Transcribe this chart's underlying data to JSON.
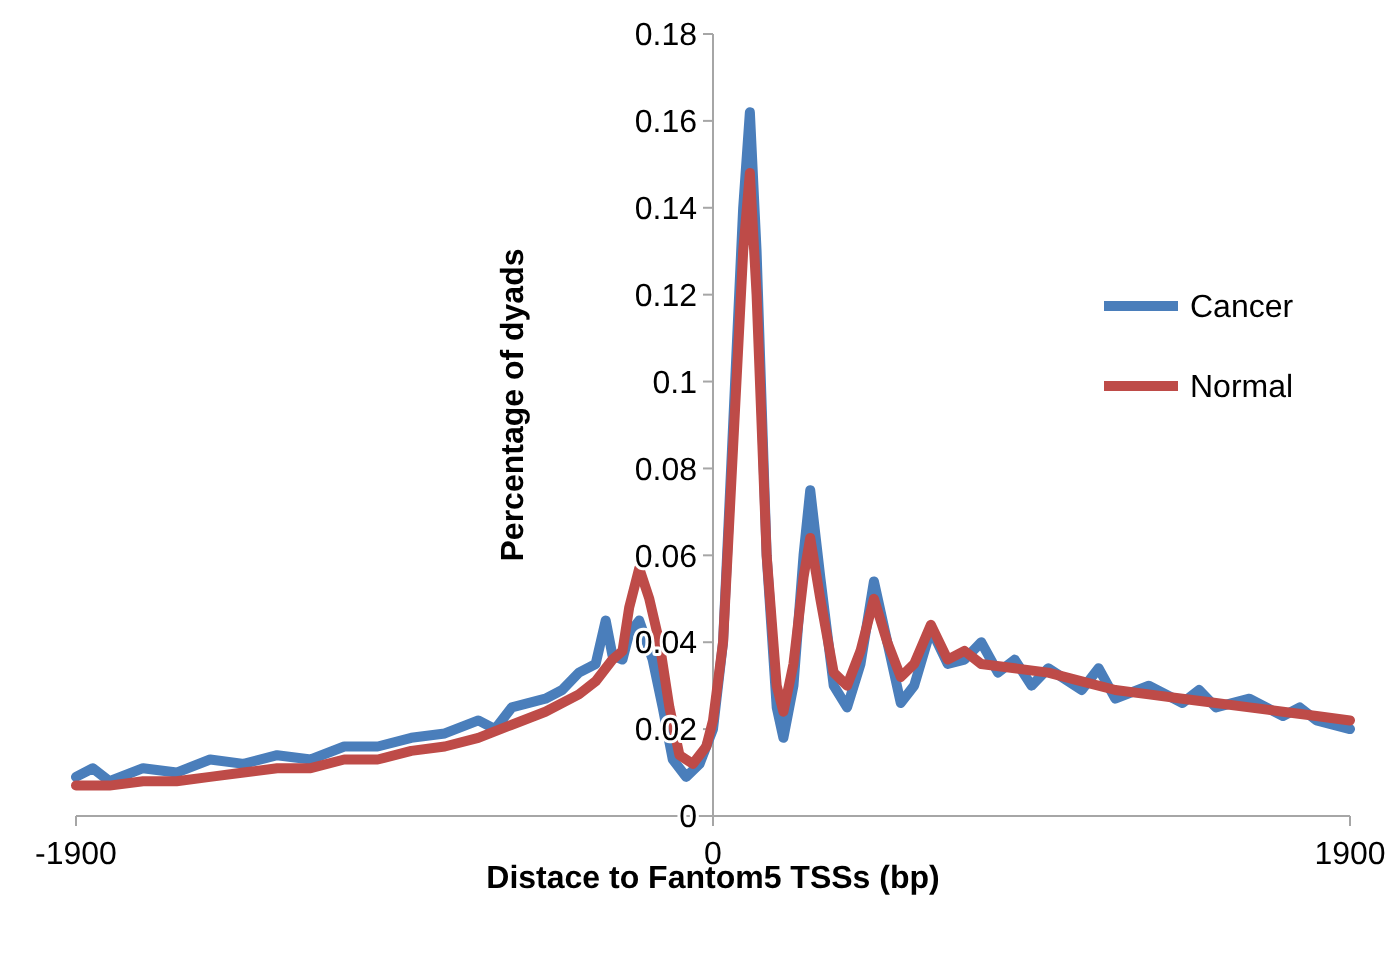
{
  "chart_data": {
    "type": "line",
    "xlabel": "Distace to Fantom5 TSSs (bp)",
    "ylabel": "Percentage of dyads",
    "xlim": [
      -1900,
      1900
    ],
    "xticks": [
      -1900,
      0,
      1900
    ],
    "ylim": [
      0,
      0.18
    ],
    "yticks": [
      0,
      0.02,
      0.04,
      0.06,
      0.08,
      0.1,
      0.12,
      0.14,
      0.16,
      0.18
    ],
    "grid": false,
    "legend": "right",
    "marker": "none",
    "line_style": "solid",
    "series": [
      {
        "name": "Cancer",
        "color": "#4a7ebb",
        "x": [
          -1900,
          -1850,
          -1800,
          -1700,
          -1600,
          -1500,
          -1400,
          -1300,
          -1200,
          -1100,
          -1000,
          -900,
          -800,
          -700,
          -650,
          -600,
          -500,
          -450,
          -400,
          -350,
          -320,
          -300,
          -270,
          -250,
          -220,
          -180,
          -150,
          -120,
          -80,
          -40,
          0,
          30,
          60,
          90,
          110,
          130,
          160,
          190,
          210,
          240,
          270,
          290,
          320,
          360,
          400,
          440,
          480,
          520,
          560,
          600,
          650,
          700,
          750,
          800,
          850,
          900,
          950,
          1000,
          1100,
          1150,
          1200,
          1300,
          1400,
          1450,
          1500,
          1600,
          1700,
          1750,
          1800,
          1900
        ],
        "values": [
          0.009,
          0.011,
          0.008,
          0.011,
          0.01,
          0.013,
          0.012,
          0.014,
          0.013,
          0.016,
          0.016,
          0.018,
          0.019,
          0.022,
          0.02,
          0.025,
          0.027,
          0.029,
          0.033,
          0.035,
          0.045,
          0.037,
          0.036,
          0.042,
          0.045,
          0.036,
          0.025,
          0.013,
          0.009,
          0.012,
          0.02,
          0.04,
          0.09,
          0.14,
          0.162,
          0.13,
          0.06,
          0.025,
          0.018,
          0.03,
          0.06,
          0.075,
          0.055,
          0.03,
          0.025,
          0.035,
          0.054,
          0.04,
          0.026,
          0.03,
          0.043,
          0.035,
          0.036,
          0.04,
          0.033,
          0.036,
          0.03,
          0.034,
          0.029,
          0.034,
          0.027,
          0.03,
          0.026,
          0.029,
          0.025,
          0.027,
          0.023,
          0.025,
          0.022,
          0.02
        ]
      },
      {
        "name": "Normal",
        "color": "#be4b48",
        "x": [
          -1900,
          -1800,
          -1700,
          -1600,
          -1500,
          -1400,
          -1300,
          -1200,
          -1100,
          -1000,
          -900,
          -800,
          -700,
          -600,
          -500,
          -400,
          -350,
          -300,
          -270,
          -250,
          -220,
          -190,
          -160,
          -130,
          -100,
          -60,
          -20,
          0,
          30,
          60,
          90,
          110,
          130,
          160,
          190,
          210,
          240,
          270,
          290,
          320,
          360,
          400,
          440,
          480,
          520,
          560,
          600,
          650,
          700,
          750,
          800,
          900,
          1000,
          1100,
          1200,
          1300,
          1400,
          1500,
          1600,
          1700,
          1800,
          1900
        ],
        "values": [
          0.007,
          0.007,
          0.008,
          0.008,
          0.009,
          0.01,
          0.011,
          0.011,
          0.013,
          0.013,
          0.015,
          0.016,
          0.018,
          0.021,
          0.024,
          0.028,
          0.031,
          0.036,
          0.038,
          0.048,
          0.057,
          0.05,
          0.04,
          0.025,
          0.014,
          0.012,
          0.016,
          0.022,
          0.04,
          0.085,
          0.13,
          0.148,
          0.12,
          0.06,
          0.03,
          0.024,
          0.035,
          0.055,
          0.064,
          0.05,
          0.033,
          0.03,
          0.038,
          0.05,
          0.04,
          0.032,
          0.035,
          0.044,
          0.036,
          0.038,
          0.035,
          0.034,
          0.033,
          0.031,
          0.029,
          0.028,
          0.027,
          0.026,
          0.025,
          0.024,
          0.023,
          0.022
        ]
      }
    ]
  }
}
